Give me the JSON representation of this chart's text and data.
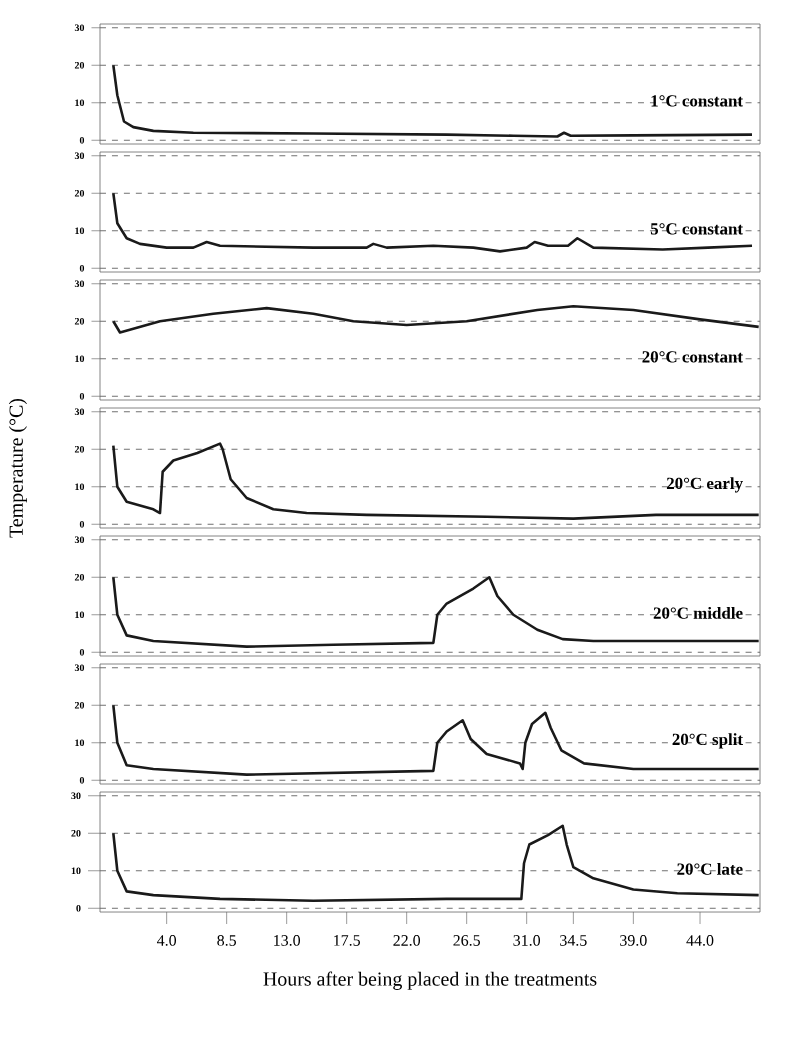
{
  "chart_data": [
    {
      "type": "line",
      "title": "1°C constant",
      "color": "#1a1a1a",
      "xlim": [
        -1,
        48.5
      ],
      "ylim": [
        -1,
        31
      ],
      "yticks": [
        0,
        10,
        20,
        30
      ],
      "grid": "y",
      "tick_labels": "y",
      "x": [
        0,
        0.3,
        0.8,
        1.5,
        3,
        6,
        15,
        25,
        30,
        33.3,
        33.8,
        34.3,
        39,
        47.9
      ],
      "values": [
        20,
        12,
        5,
        3.5,
        2.5,
        2,
        1.8,
        1.5,
        1.2,
        1,
        2,
        1.2,
        1.3,
        1.5
      ]
    },
    {
      "type": "line",
      "title": "5°C constant",
      "color": "#1a1a1a",
      "xlim": [
        -1,
        48.5
      ],
      "ylim": [
        -1,
        31
      ],
      "yticks": [
        0,
        10,
        20,
        30
      ],
      "grid": "y",
      "tick_labels": "y",
      "x": [
        0,
        0.3,
        1,
        2,
        4,
        6,
        7,
        8,
        15,
        19,
        19.5,
        20.5,
        24,
        27,
        29,
        31,
        31.6,
        32.6,
        34.1,
        34.8,
        36,
        41.2,
        44.6,
        47.9
      ],
      "values": [
        20,
        12,
        8,
        6.5,
        5.5,
        5.5,
        7,
        6,
        5.5,
        5.5,
        6.5,
        5.5,
        6,
        5.5,
        4.5,
        5.5,
        7,
        6,
        6,
        8,
        5.5,
        5,
        5.5,
        6
      ]
    },
    {
      "type": "line",
      "title": "20°C constant",
      "color": "#1a1a1a",
      "xlim": [
        -1,
        48.5
      ],
      "ylim": [
        -1,
        31
      ],
      "yticks": [
        0,
        10,
        20,
        30
      ],
      "grid": "y",
      "tick_labels": "y",
      "x": [
        0,
        0.5,
        3.5,
        7.5,
        11.5,
        15,
        18,
        22,
        26.5,
        31.8,
        34.5,
        39,
        44,
        48.4
      ],
      "values": [
        20,
        17,
        20,
        22,
        23.5,
        22,
        20,
        19,
        20,
        23,
        24,
        23,
        20.5,
        18.5
      ]
    },
    {
      "type": "line",
      "title": "20°C early",
      "ylabel": "Temperature (°C)",
      "color": "#1a1a1a",
      "xlim": [
        -1,
        48.5
      ],
      "ylim": [
        -1,
        31
      ],
      "yticks": [
        0,
        10,
        20,
        30
      ],
      "grid": "y",
      "tick_labels": "y",
      "x": [
        0,
        0.3,
        1,
        3,
        3.5,
        3.7,
        4.5,
        6.3,
        8,
        8.2,
        8.8,
        10,
        12,
        14.5,
        19,
        28,
        34.5,
        40.7,
        48.4
      ],
      "values": [
        21,
        10,
        6,
        4,
        3,
        14,
        17,
        19,
        21.5,
        20,
        12,
        7,
        4,
        3,
        2.5,
        2,
        1.5,
        2.5,
        2.5
      ]
    },
    {
      "type": "line",
      "title": "20°C middle",
      "color": "#1a1a1a",
      "xlim": [
        -1,
        48.5
      ],
      "ylim": [
        -1,
        31
      ],
      "yticks": [
        0,
        10,
        20,
        30
      ],
      "grid": "y",
      "tick_labels": "y",
      "x": [
        0,
        0.3,
        1,
        3,
        10,
        16.5,
        24,
        24.3,
        25,
        27,
        28.2,
        28.8,
        30,
        31.8,
        33.7,
        36,
        48.4
      ],
      "values": [
        20,
        10,
        4.5,
        3,
        1.5,
        2,
        2.5,
        10,
        13,
        17,
        20,
        15,
        10,
        6,
        3.5,
        3,
        3
      ]
    },
    {
      "type": "line",
      "title": "20°C split",
      "color": "#1a1a1a",
      "xlim": [
        -1,
        48.5
      ],
      "ylim": [
        -1,
        31
      ],
      "yticks": [
        0,
        10,
        20,
        30
      ],
      "grid": "y",
      "tick_labels": "y",
      "x": [
        0,
        0.3,
        1,
        3,
        10,
        24,
        24.3,
        25,
        26.2,
        26.8,
        28,
        30.5,
        30.7,
        30.9,
        31.4,
        32.4,
        32.8,
        33.6,
        35.3,
        39,
        48.4
      ],
      "values": [
        20,
        10,
        4,
        3,
        1.5,
        2.5,
        10,
        13,
        16,
        11,
        7,
        4.5,
        3,
        10,
        15,
        18,
        14,
        8,
        4.5,
        3,
        3
      ]
    },
    {
      "type": "line",
      "title": "20°C late",
      "xlabel": "Hours after being placed in the treatments",
      "color": "#1a1a1a",
      "xlim": [
        -1,
        48.5
      ],
      "ylim": [
        -1,
        31
      ],
      "yticks": [
        0,
        10,
        20,
        30
      ],
      "grid": "y",
      "xticks": [
        {
          "value": 4,
          "label": "4.0"
        },
        {
          "value": 8.5,
          "label": "8.5"
        },
        {
          "value": 13,
          "label": "13.0"
        },
        {
          "value": 17.5,
          "label": "17.5"
        },
        {
          "value": 22,
          "label": "22.0"
        },
        {
          "value": 26.5,
          "label": "26.5"
        },
        {
          "value": 31,
          "label": "31.0"
        },
        {
          "value": 34.5,
          "label": "34.5"
        },
        {
          "value": 39,
          "label": "39.0"
        },
        {
          "value": 44,
          "label": "44.0"
        }
      ],
      "x": [
        0,
        0.3,
        1,
        3,
        8,
        15,
        25,
        30.6,
        30.8,
        31.2,
        32.6,
        33.7,
        34,
        34.5,
        36,
        39,
        42.3,
        48.4
      ],
      "values": [
        20,
        10,
        4.5,
        3.5,
        2.5,
        2,
        2.5,
        2.5,
        12,
        17,
        19.5,
        22,
        17,
        11,
        8,
        5,
        4,
        3.5
      ]
    }
  ]
}
